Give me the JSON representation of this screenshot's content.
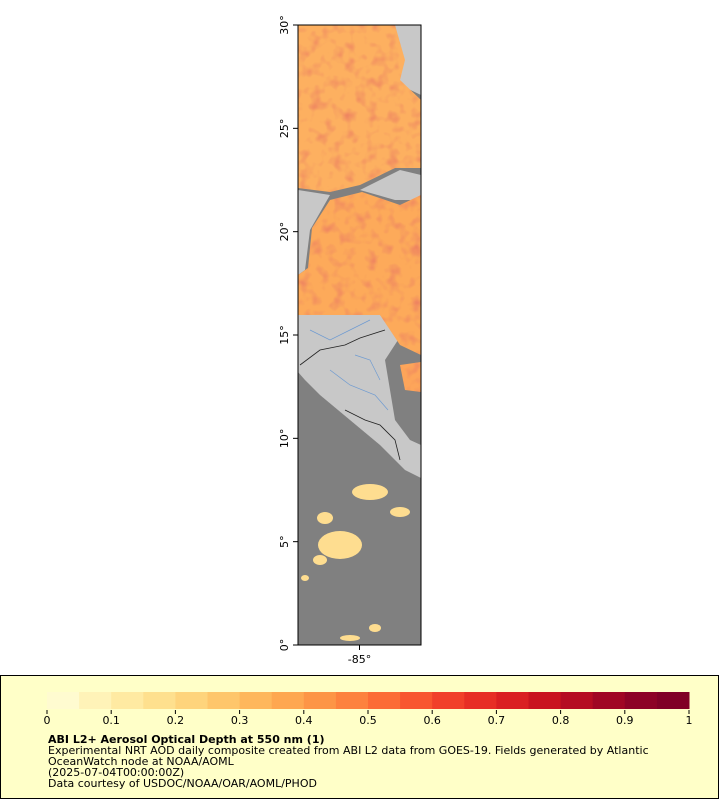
{
  "map": {
    "xlim": [
      -88,
      -82
    ],
    "ylim": [
      0,
      30
    ],
    "xticks": [
      {
        "value": -85,
        "label": "-85°"
      }
    ],
    "yticks": [
      {
        "value": 0,
        "label": "0°"
      },
      {
        "value": 5,
        "label": "5°"
      },
      {
        "value": 10,
        "label": "10°"
      },
      {
        "value": 15,
        "label": "15°"
      },
      {
        "value": 20,
        "label": "20°"
      },
      {
        "value": 25,
        "label": "25°"
      },
      {
        "value": 30,
        "label": "30°"
      }
    ]
  },
  "colorbar": {
    "ticks": [
      0,
      0.1,
      0.2,
      0.3,
      0.4,
      0.5,
      0.6,
      0.7,
      0.8,
      0.9,
      1
    ],
    "colors": [
      "#fffbd0",
      "#fff3b8",
      "#ffeaa2",
      "#fee08e",
      "#fed47c",
      "#fec66b",
      "#feb75c",
      "#fea750",
      "#fd9546",
      "#fd823e",
      "#fc6c36",
      "#f8562f",
      "#f1402a",
      "#e72e25",
      "#da1f22",
      "#c9131f",
      "#b50c22",
      "#a00624",
      "#8d0226",
      "#800026"
    ]
  },
  "caption": {
    "title": "ABI L2+ Aerosol Optical Depth at 550 nm (1)",
    "lines": [
      "Experimental NRT AOD daily composite created from ABI L2 data from GOES-19. Fields generated by Atlantic",
      "OceanWatch node at NOAA/AOML",
      "(2025-07-04T00:00:00Z)",
      "Data courtesy of USDOC/NOAA/OAR/AOML/PHOD"
    ]
  }
}
